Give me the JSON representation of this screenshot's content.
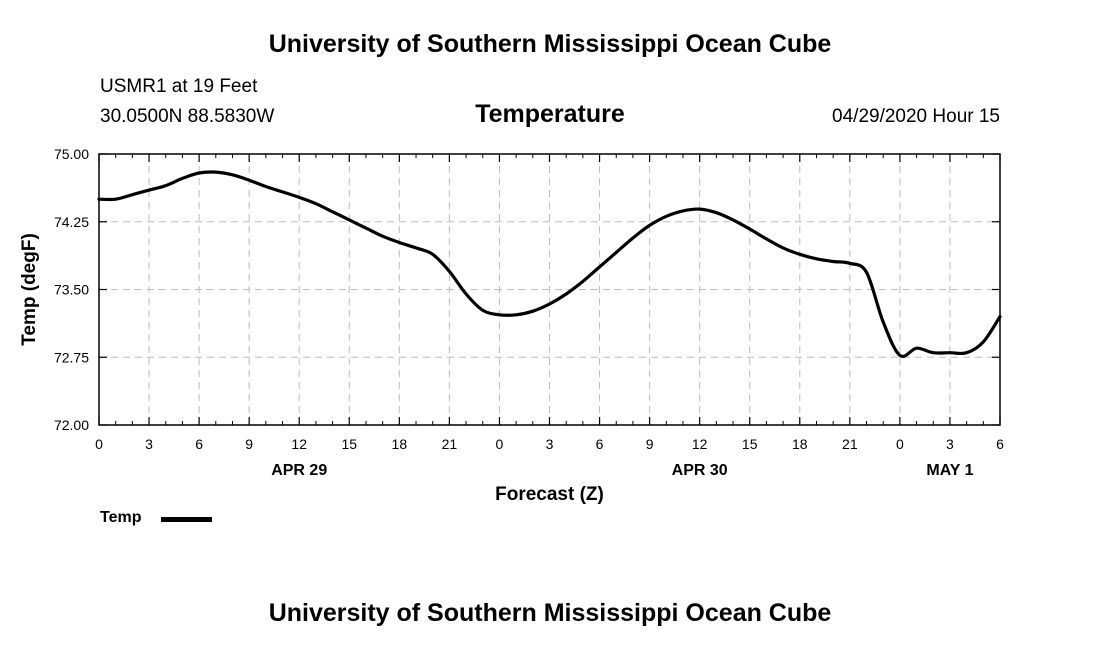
{
  "header": {
    "title": "University of Southern Mississippi Ocean Cube",
    "station": "USMR1 at 19 Feet",
    "coordinates": "30.0500N 88.5830W",
    "datetime": "04/29/2020 Hour 15"
  },
  "footer": {
    "title": "University of Southern Mississippi Ocean Cube"
  },
  "legend": {
    "label": "Temp",
    "color": "#000000"
  },
  "chart_data": {
    "type": "line",
    "title": "Temperature",
    "xlabel": "Forecast (Z)",
    "ylabel": "Temp (degF)",
    "xlim": [
      0,
      54
    ],
    "ylim": [
      72.0,
      75.0
    ],
    "grid": true,
    "x_ticks": [
      0,
      3,
      6,
      9,
      12,
      15,
      18,
      21,
      24,
      27,
      30,
      33,
      36,
      39,
      42,
      45,
      48,
      51,
      54
    ],
    "x_tick_labels": [
      "0",
      "3",
      "6",
      "9",
      "12",
      "15",
      "18",
      "21",
      "0",
      "3",
      "6",
      "9",
      "12",
      "15",
      "18",
      "21",
      "0",
      "3",
      "6"
    ],
    "y_ticks": [
      72.0,
      72.75,
      73.5,
      74.25,
      75.0
    ],
    "y_tick_labels": [
      "72.00",
      "72.75",
      "73.50",
      "74.25",
      "75.00"
    ],
    "date_labels": [
      {
        "x": 12,
        "label": "APR 29"
      },
      {
        "x": 36,
        "label": "APR 30"
      },
      {
        "x": 51,
        "label": "MAY 1"
      }
    ],
    "series": [
      {
        "name": "Temp",
        "color": "#000000",
        "x": [
          0,
          1,
          2,
          3,
          4,
          5,
          6,
          7,
          8,
          9,
          10,
          11,
          12,
          13,
          14,
          15,
          16,
          17,
          18,
          19,
          20,
          21,
          22,
          23,
          24,
          25,
          26,
          27,
          28,
          29,
          30,
          31,
          32,
          33,
          34,
          35,
          36,
          37,
          38,
          39,
          40,
          41,
          42,
          43,
          44,
          45,
          46,
          47,
          48,
          49,
          50,
          51,
          52,
          53,
          54
        ],
        "values": [
          74.5,
          74.5,
          74.55,
          74.6,
          74.65,
          74.73,
          74.79,
          74.8,
          74.77,
          74.71,
          74.64,
          74.58,
          74.52,
          74.45,
          74.36,
          74.27,
          74.18,
          74.09,
          74.02,
          73.96,
          73.89,
          73.7,
          73.45,
          73.27,
          73.22,
          73.22,
          73.26,
          73.34,
          73.45,
          73.59,
          73.75,
          73.91,
          74.07,
          74.21,
          74.31,
          74.37,
          74.39,
          74.35,
          74.27,
          74.17,
          74.06,
          73.96,
          73.89,
          73.84,
          73.81,
          73.79,
          73.69,
          73.14,
          72.77,
          72.85,
          72.8,
          72.8,
          72.8,
          72.92,
          73.2
        ]
      }
    ]
  }
}
